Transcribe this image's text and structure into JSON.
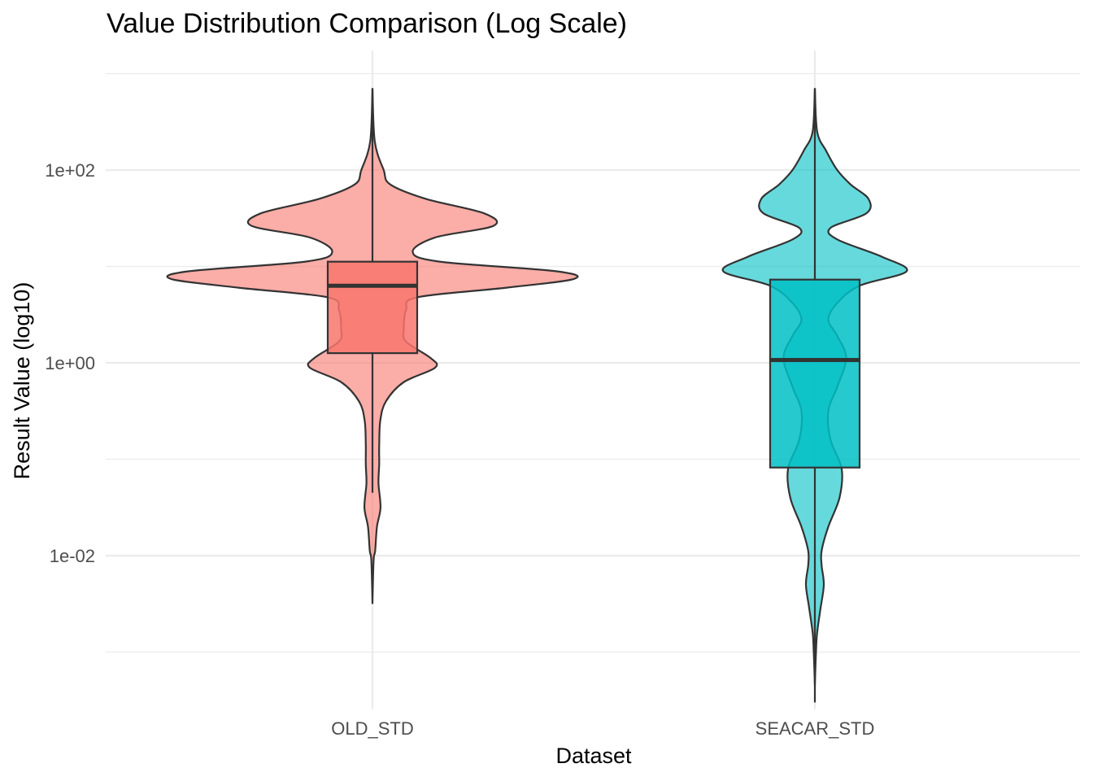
{
  "chart_data": {
    "type": "violin",
    "title": "Value Distribution Comparison (Log Scale)",
    "xlabel": "Dataset",
    "ylabel": "Result Value (log10)",
    "y_scale": "log10",
    "y_tick_labels": [
      "1e-02",
      "1e+00",
      "1e+02"
    ],
    "y_tick_values": [
      0.01,
      1,
      100
    ],
    "y_minor_values": [
      0.001,
      0.1,
      10,
      1000
    ],
    "ylim": [
      0.00025,
      1600
    ],
    "grid": true,
    "legend": "none",
    "categories": [
      "OLD_STD",
      "SEACAR_STD"
    ],
    "series": [
      {
        "name": "OLD_STD",
        "color": "#F8766D",
        "box": {
          "min": 0.045,
          "q1": 1.26,
          "median": 6.3,
          "q3": 11.2,
          "max": 700
        },
        "density_max_log10": 2.85,
        "density_min_log10": -2.5,
        "density_profile": [
          [
            2.85,
            0.0
          ],
          [
            2.3,
            0.01
          ],
          [
            2.0,
            0.05
          ],
          [
            1.85,
            0.08
          ],
          [
            1.7,
            0.24
          ],
          [
            1.55,
            0.5
          ],
          [
            1.42,
            0.54
          ],
          [
            1.3,
            0.28
          ],
          [
            1.15,
            0.18
          ],
          [
            1.05,
            0.3
          ],
          [
            0.95,
            0.82
          ],
          [
            0.87,
            0.9
          ],
          [
            0.78,
            0.6
          ],
          [
            0.68,
            0.2
          ],
          [
            0.55,
            0.15
          ],
          [
            0.35,
            0.14
          ],
          [
            0.22,
            0.15
          ],
          [
            0.05,
            0.26
          ],
          [
            -0.05,
            0.28
          ],
          [
            -0.2,
            0.14
          ],
          [
            -0.4,
            0.06
          ],
          [
            -0.6,
            0.035
          ],
          [
            -0.85,
            0.03
          ],
          [
            -1.05,
            0.03
          ],
          [
            -1.25,
            0.027
          ],
          [
            -1.5,
            0.036
          ],
          [
            -1.7,
            0.02
          ],
          [
            -1.95,
            0.012
          ],
          [
            -2.05,
            0.005
          ],
          [
            -2.5,
            0.0
          ]
        ]
      },
      {
        "name": "SEACAR_STD",
        "color": "#00BFC4",
        "box": {
          "min": 0.0003,
          "q1": 0.082,
          "median": 1.07,
          "q3": 7.3,
          "max": 700
        },
        "density_max_log10": 2.85,
        "density_min_log10": -3.35,
        "density_profile": [
          [
            2.85,
            0.0
          ],
          [
            2.4,
            0.01
          ],
          [
            2.2,
            0.05
          ],
          [
            2.0,
            0.1
          ],
          [
            1.85,
            0.16
          ],
          [
            1.7,
            0.24
          ],
          [
            1.55,
            0.23
          ],
          [
            1.4,
            0.07
          ],
          [
            1.28,
            0.1
          ],
          [
            1.1,
            0.3
          ],
          [
            0.95,
            0.41
          ],
          [
            0.8,
            0.2
          ],
          [
            0.62,
            0.1
          ],
          [
            0.45,
            0.06
          ],
          [
            0.28,
            0.1
          ],
          [
            0.05,
            0.14
          ],
          [
            -0.25,
            0.1
          ],
          [
            -0.5,
            0.06
          ],
          [
            -0.8,
            0.07
          ],
          [
            -1.1,
            0.12
          ],
          [
            -1.4,
            0.11
          ],
          [
            -1.7,
            0.06
          ],
          [
            -1.95,
            0.03
          ],
          [
            -2.1,
            0.03
          ],
          [
            -2.3,
            0.04
          ],
          [
            -2.55,
            0.025
          ],
          [
            -2.8,
            0.01
          ],
          [
            -3.0,
            0.005
          ],
          [
            -3.35,
            0.0
          ]
        ]
      }
    ]
  }
}
